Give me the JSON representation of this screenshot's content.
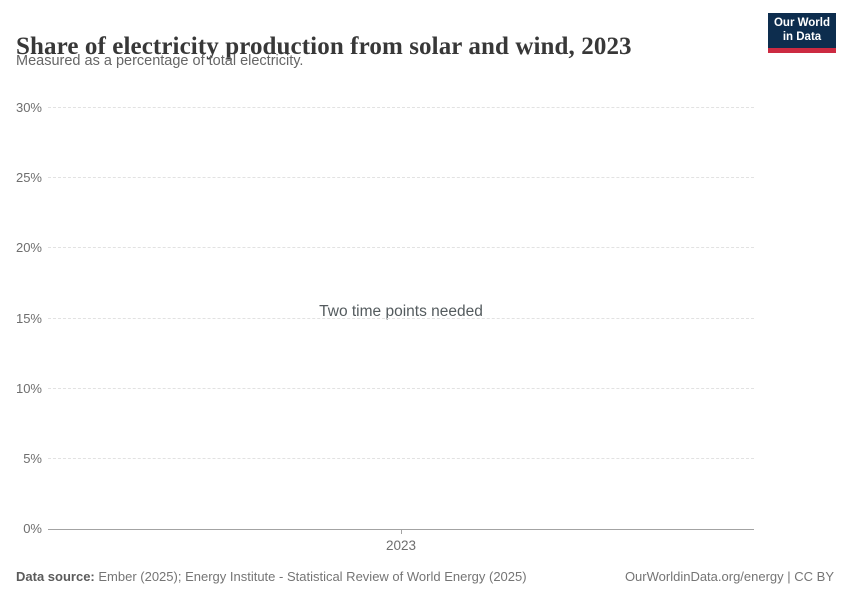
{
  "header": {
    "title": "Share of electricity production from solar and wind, 2023",
    "subtitle": "Measured as a percentage of total electricity.",
    "logo": {
      "line1": "Our World",
      "line2": "in Data",
      "bg_color": "#0d2d4e",
      "stripe_color": "#cc2a41"
    }
  },
  "chart_data": {
    "type": "line",
    "title": "Share of electricity production from solar and wind, 2023",
    "subtitle": "Measured as a percentage of total electricity.",
    "series": [],
    "message": "Two time points needed",
    "ylim": [
      0,
      30
    ],
    "yticks": [
      {
        "value": 0,
        "label": "0%"
      },
      {
        "value": 5,
        "label": "5%"
      },
      {
        "value": 10,
        "label": "10%"
      },
      {
        "value": 15,
        "label": "15%"
      },
      {
        "value": 20,
        "label": "20%"
      },
      {
        "value": 25,
        "label": "25%"
      },
      {
        "value": 30,
        "label": "30%"
      }
    ],
    "xticks": [
      {
        "label": "2023",
        "frac": 0.5
      }
    ],
    "grid": true,
    "legend_position": "none"
  },
  "footer": {
    "source_label": "Data source:",
    "source_text": " Ember (2025); Energy Institute - Statistical Review of World Energy (2025)",
    "credit": "OurWorldinData.org/energy | CC BY"
  }
}
